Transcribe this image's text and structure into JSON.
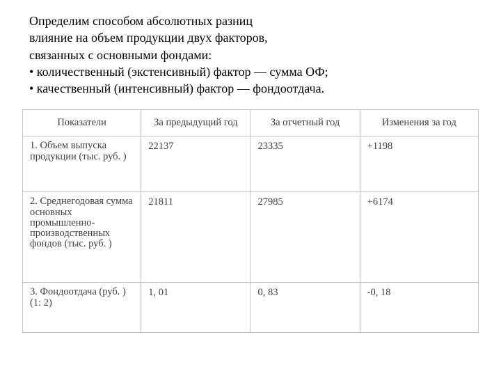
{
  "intro": {
    "line1": "Определим способом абсолютных разниц",
    "line2": "влияние на объем продукции двух факторов,",
    "line3": "связанных с основными фондами:",
    "bullet1": "• количественный (экстенсивный) фактор — сумма ОФ;",
    "bullet2": "• качественный (интенсивный) фактор — фондоотдача."
  },
  "table": {
    "headers": {
      "indicator": "Показатели",
      "prev": "За предыдущий год",
      "curr": "За отчетный год",
      "change": "Изменения за год"
    },
    "rows": [
      {
        "label": "1. Объем выпуска продукции (тыс. руб. )",
        "prev": "22137",
        "curr": "23335",
        "change": "+1198"
      },
      {
        "label": "2. Среднегодовая сумма основных промышленно-производственных фондов (тыс. руб. )",
        "prev": "21811",
        "curr": "27985",
        "change": "+6174"
      },
      {
        "label": "3. Фондоотдача (руб. ) (1: 2)",
        "prev": "1, 01",
        "curr": "0, 83",
        "change": "-0, 18"
      }
    ]
  },
  "colors": {
    "text_black": "#000000",
    "text_gray": "#3f3f3f",
    "border": "#c0c0c0",
    "bg": "#ffffff"
  }
}
